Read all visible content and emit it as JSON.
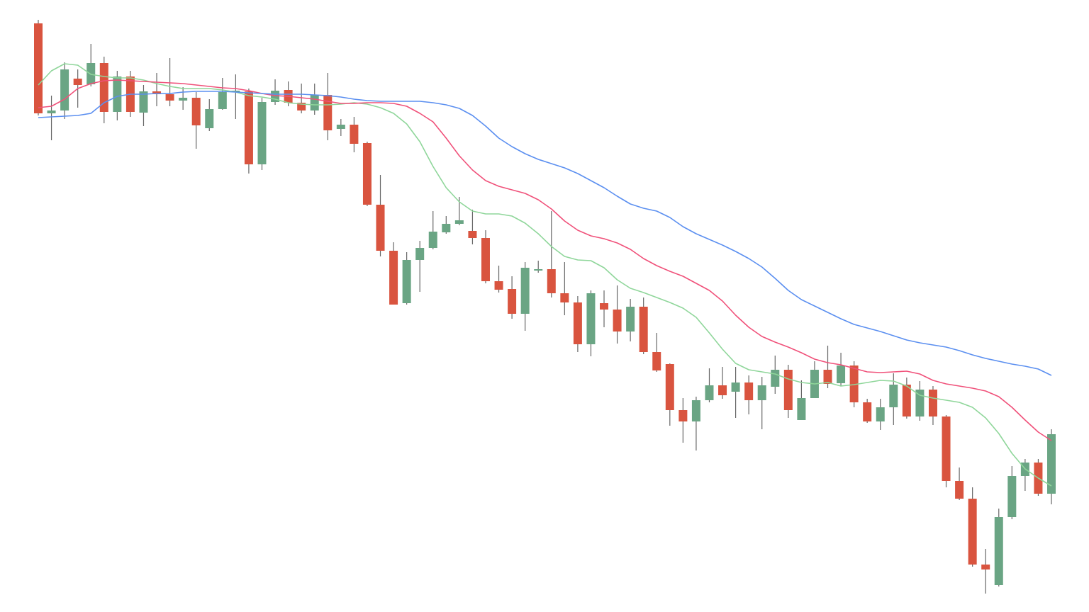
{
  "chart_data": {
    "type": "candlestick",
    "up_color": "#6aa584",
    "down_color": "#d9543f",
    "wick_color": "#666666",
    "ylim": [
      136,
      1000
    ],
    "open": [
      967,
      840,
      844,
      889,
      881,
      911,
      842,
      892,
      841,
      871,
      867,
      858,
      862,
      819,
      846,
      870,
      871,
      768,
      856,
      873,
      855,
      844,
      866,
      818,
      824,
      798,
      711,
      646,
      572,
      633,
      650,
      672,
      684,
      674,
      664,
      603,
      592,
      557,
      618,
      620,
      586,
      573,
      514,
      572,
      563,
      532,
      567,
      503,
      486,
      421,
      405,
      435,
      456,
      447,
      460,
      435,
      454,
      478,
      407,
      438,
      478,
      459,
      484,
      432,
      405,
      425,
      457,
      412,
      450,
      412,
      321,
      296,
      203,
      174,
      270,
      328,
      347,
      303
    ],
    "high": [
      972,
      865,
      912,
      902,
      938,
      920,
      900,
      900,
      880,
      897,
      918,
      877,
      870,
      860,
      890,
      895,
      875,
      862,
      888,
      885,
      882,
      882,
      897,
      832,
      835,
      800,
      753,
      658,
      644,
      660,
      702,
      695,
      722,
      704,
      675,
      625,
      610,
      630,
      632,
      702,
      630,
      582,
      590,
      590,
      597,
      578,
      580,
      530,
      487,
      438,
      440,
      480,
      482,
      482,
      470,
      468,
      498,
      485,
      463,
      490,
      512,
      502,
      490,
      437,
      437,
      473,
      467,
      462,
      455,
      414,
      340,
      312,
      225,
      282,
      342,
      352,
      352,
      394
    ],
    "low": [
      837,
      802,
      832,
      848,
      878,
      826,
      830,
      835,
      822,
      850,
      850,
      845,
      790,
      815,
      845,
      832,
      755,
      760,
      852,
      850,
      840,
      838,
      802,
      808,
      785,
      709,
      638,
      570,
      570,
      588,
      648,
      670,
      682,
      655,
      600,
      587,
      550,
      533,
      615,
      580,
      555,
      503,
      497,
      538,
      515,
      518,
      500,
      475,
      399,
      375,
      364,
      432,
      437,
      410,
      415,
      394,
      444,
      410,
      407,
      438,
      452,
      455,
      425,
      403,
      393,
      400,
      409,
      406,
      400,
      312,
      294,
      200,
      162,
      172,
      267,
      307,
      300,
      288
    ],
    "close": [
      840,
      844,
      902,
      880,
      911,
      842,
      892,
      842,
      871,
      867,
      858,
      862,
      823,
      846,
      870,
      872,
      768,
      856,
      872,
      855,
      844,
      866,
      816,
      824,
      797,
      711,
      646,
      570,
      633,
      650,
      673,
      684,
      689,
      664,
      603,
      591,
      557,
      622,
      620,
      586,
      573,
      514,
      586,
      563,
      532,
      567,
      503,
      477,
      421,
      405,
      435,
      456,
      442,
      460,
      435,
      456,
      478,
      421,
      438,
      478,
      458,
      484,
      432,
      405,
      425,
      457,
      412,
      450,
      412,
      321,
      296,
      203,
      196,
      270,
      328,
      347,
      303,
      387
    ],
    "lines": [
      {
        "color": "#8fd69a",
        "values": [
          880,
          900,
          910,
          908,
          895,
          892,
          890,
          890,
          887,
          882,
          878,
          875,
          875,
          875,
          873,
          870,
          865,
          863,
          860,
          855,
          853,
          852,
          852,
          853,
          855,
          853,
          848,
          840,
          825,
          800,
          765,
          735,
          715,
          702,
          698,
          698,
          695,
          685,
          670,
          652,
          638,
          633,
          632,
          622,
          605,
          593,
          587,
          580,
          573,
          565,
          552,
          530,
          507,
          487,
          478,
          475,
          472,
          465,
          460,
          458,
          460,
          455,
          457,
          460,
          463,
          462,
          455,
          442,
          438,
          435,
          432,
          425,
          410,
          388,
          360,
          338,
          325,
          314
        ]
      },
      {
        "color": "#f0517a",
        "values": [
          848,
          850,
          860,
          875,
          882,
          886,
          887,
          886,
          885,
          884,
          883,
          882,
          880,
          878,
          876,
          875,
          872,
          868,
          865,
          864,
          862,
          860,
          857,
          854,
          854,
          855,
          855,
          854,
          850,
          840,
          828,
          805,
          780,
          760,
          745,
          737,
          732,
          727,
          718,
          705,
          688,
          675,
          667,
          663,
          657,
          648,
          635,
          625,
          617,
          610,
          600,
          590,
          575,
          555,
          538,
          525,
          517,
          510,
          502,
          493,
          488,
          485,
          480,
          475,
          474,
          475,
          476,
          472,
          463,
          458,
          455,
          452,
          448,
          440,
          425,
          407,
          390,
          378
        ]
      },
      {
        "color": "#5b8ff0",
        "values": [
          834,
          835,
          836,
          837,
          840,
          855,
          864,
          867,
          867,
          868,
          868,
          870,
          871,
          871,
          871,
          870,
          869,
          868,
          867,
          867,
          867,
          866,
          865,
          863,
          860,
          858,
          857,
          857,
          857,
          857,
          855,
          852,
          847,
          837,
          822,
          805,
          793,
          783,
          775,
          769,
          763,
          755,
          745,
          735,
          723,
          712,
          706,
          702,
          693,
          680,
          670,
          662,
          654,
          645,
          635,
          623,
          607,
          590,
          577,
          568,
          559,
          550,
          542,
          537,
          532,
          526,
          520,
          516,
          513,
          510,
          505,
          499,
          494,
          490,
          486,
          483,
          479,
          470
        ]
      }
    ]
  }
}
